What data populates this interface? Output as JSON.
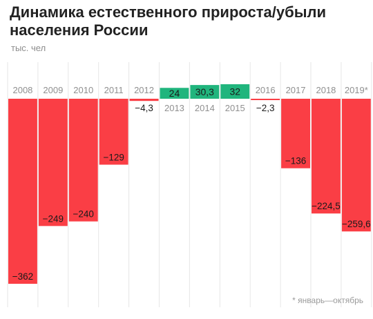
{
  "header": {
    "title": "Динамика естественного прироста/убыли населения России",
    "unit": "тыс. чел"
  },
  "footnote": "* январь—октябрь",
  "colors": {
    "negative": "#fa3e45",
    "positive": "#20b57d"
  },
  "chart_data": {
    "type": "bar",
    "categories": [
      "2008",
      "2009",
      "2010",
      "2011",
      "2012",
      "2013",
      "2014",
      "2015",
      "2016",
      "2017",
      "2018",
      "2019*"
    ],
    "values": [
      -362,
      -249,
      -240,
      -129,
      -4.3,
      24,
      30.3,
      32,
      -2.3,
      -136,
      -224.5,
      -259.6
    ],
    "value_labels": [
      "−362",
      "−249",
      "−240",
      "−129",
      "−4,3",
      "24",
      "30,3",
      "32",
      "−2,3",
      "−136",
      "−224,5",
      "−259,6"
    ],
    "title": "Динамика естественного прироста/убыли населения России",
    "ylabel": "тыс. чел",
    "ylim": [
      -362,
      32
    ],
    "grid": true,
    "legend": "none"
  }
}
